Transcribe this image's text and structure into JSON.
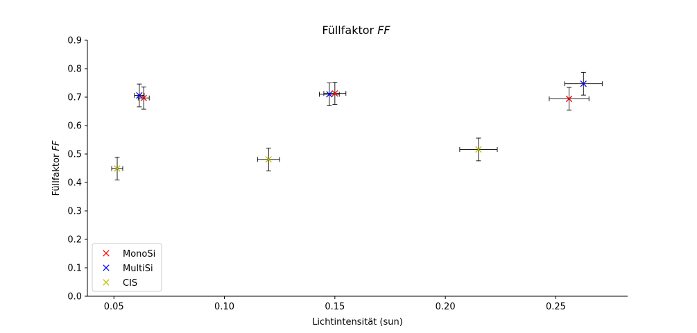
{
  "chart_data": {
    "type": "scatter",
    "title": "Füllfaktor",
    "title_italic": "FF",
    "xlabel": "Lichtintensität (sun)",
    "ylabel": "Füllfaktor",
    "ylabel_italic": "FF",
    "xlim": [
      0.038,
      0.2825
    ],
    "ylim": [
      0.0,
      0.9
    ],
    "xticks": [
      0.05,
      0.1,
      0.15,
      0.2,
      0.25
    ],
    "xtick_labels": [
      "0.05",
      "0.10",
      "0.15",
      "0.20",
      "0.25"
    ],
    "yticks": [
      0.0,
      0.1,
      0.2,
      0.3,
      0.4,
      0.5,
      0.6,
      0.7,
      0.8,
      0.9
    ],
    "ytick_labels": [
      "0.0",
      "0.1",
      "0.2",
      "0.3",
      "0.4",
      "0.5",
      "0.6",
      "0.7",
      "0.8",
      "0.9"
    ],
    "grid": false,
    "legend_position": "lower-left",
    "marker": "x",
    "series": [
      {
        "name": "MonoSi",
        "color": "#ff0000",
        "points": [
          {
            "x": 0.0635,
            "y": 0.697,
            "xerr": 0.0025,
            "yerr": 0.039
          },
          {
            "x": 0.15,
            "y": 0.713,
            "xerr": 0.005,
            "yerr": 0.039
          },
          {
            "x": 0.256,
            "y": 0.694,
            "xerr": 0.009,
            "yerr": 0.04
          }
        ]
      },
      {
        "name": "MultiSi",
        "color": "#0000ff",
        "points": [
          {
            "x": 0.0615,
            "y": 0.706,
            "xerr": 0.0022,
            "yerr": 0.04
          },
          {
            "x": 0.1475,
            "y": 0.71,
            "xerr": 0.0045,
            "yerr": 0.04
          },
          {
            "x": 0.2625,
            "y": 0.747,
            "xerr": 0.0085,
            "yerr": 0.04
          }
        ]
      },
      {
        "name": "CIS",
        "color": "#bfbf00",
        "points": [
          {
            "x": 0.0515,
            "y": 0.449,
            "xerr": 0.0025,
            "yerr": 0.04
          },
          {
            "x": 0.12,
            "y": 0.481,
            "xerr": 0.005,
            "yerr": 0.04
          },
          {
            "x": 0.215,
            "y": 0.516,
            "xerr": 0.0085,
            "yerr": 0.04
          }
        ]
      }
    ]
  }
}
